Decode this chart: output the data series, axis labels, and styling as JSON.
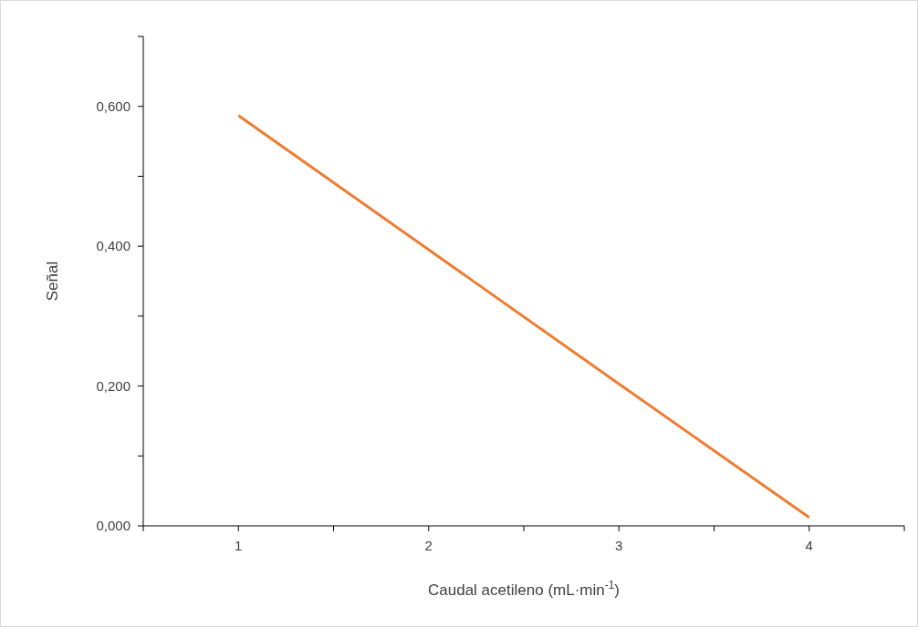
{
  "chart_data": {
    "type": "line",
    "xlabel": "Caudal acetileno (mL·min$^{-1}$)",
    "ylabel": "Señal",
    "x": [
      1,
      2,
      3,
      4
    ],
    "series": [
      {
        "color": "#ed7d31",
        "values": [
          0.587,
          0.395,
          0.203,
          0.012
        ]
      }
    ],
    "xlim": [
      0.5,
      4.5
    ],
    "xticks": [
      {
        "value": 0.5,
        "label": null
      },
      1,
      {
        "value": 1.5,
        "label": null
      },
      2,
      {
        "value": 2.5,
        "label": null
      },
      3,
      {
        "value": 3.5,
        "label": null
      },
      4,
      {
        "value": 4.5,
        "label": null
      }
    ],
    "ylim": [
      0,
      0.7
    ],
    "yticks": [
      {
        "value": 0,
        "label": "0,000"
      },
      {
        "value": 0.1,
        "label": null
      },
      {
        "value": 0.2,
        "label": "0,200"
      },
      {
        "value": 0.3,
        "label": null
      },
      {
        "value": 0.4,
        "label": "0,400"
      },
      {
        "value": 0.5,
        "label": null
      },
      {
        "value": 0.6,
        "label": "0,600"
      },
      {
        "value": 0.7,
        "label": null
      }
    ],
    "grid": false,
    "legend": false,
    "marker": "none",
    "line_style": "solid"
  }
}
